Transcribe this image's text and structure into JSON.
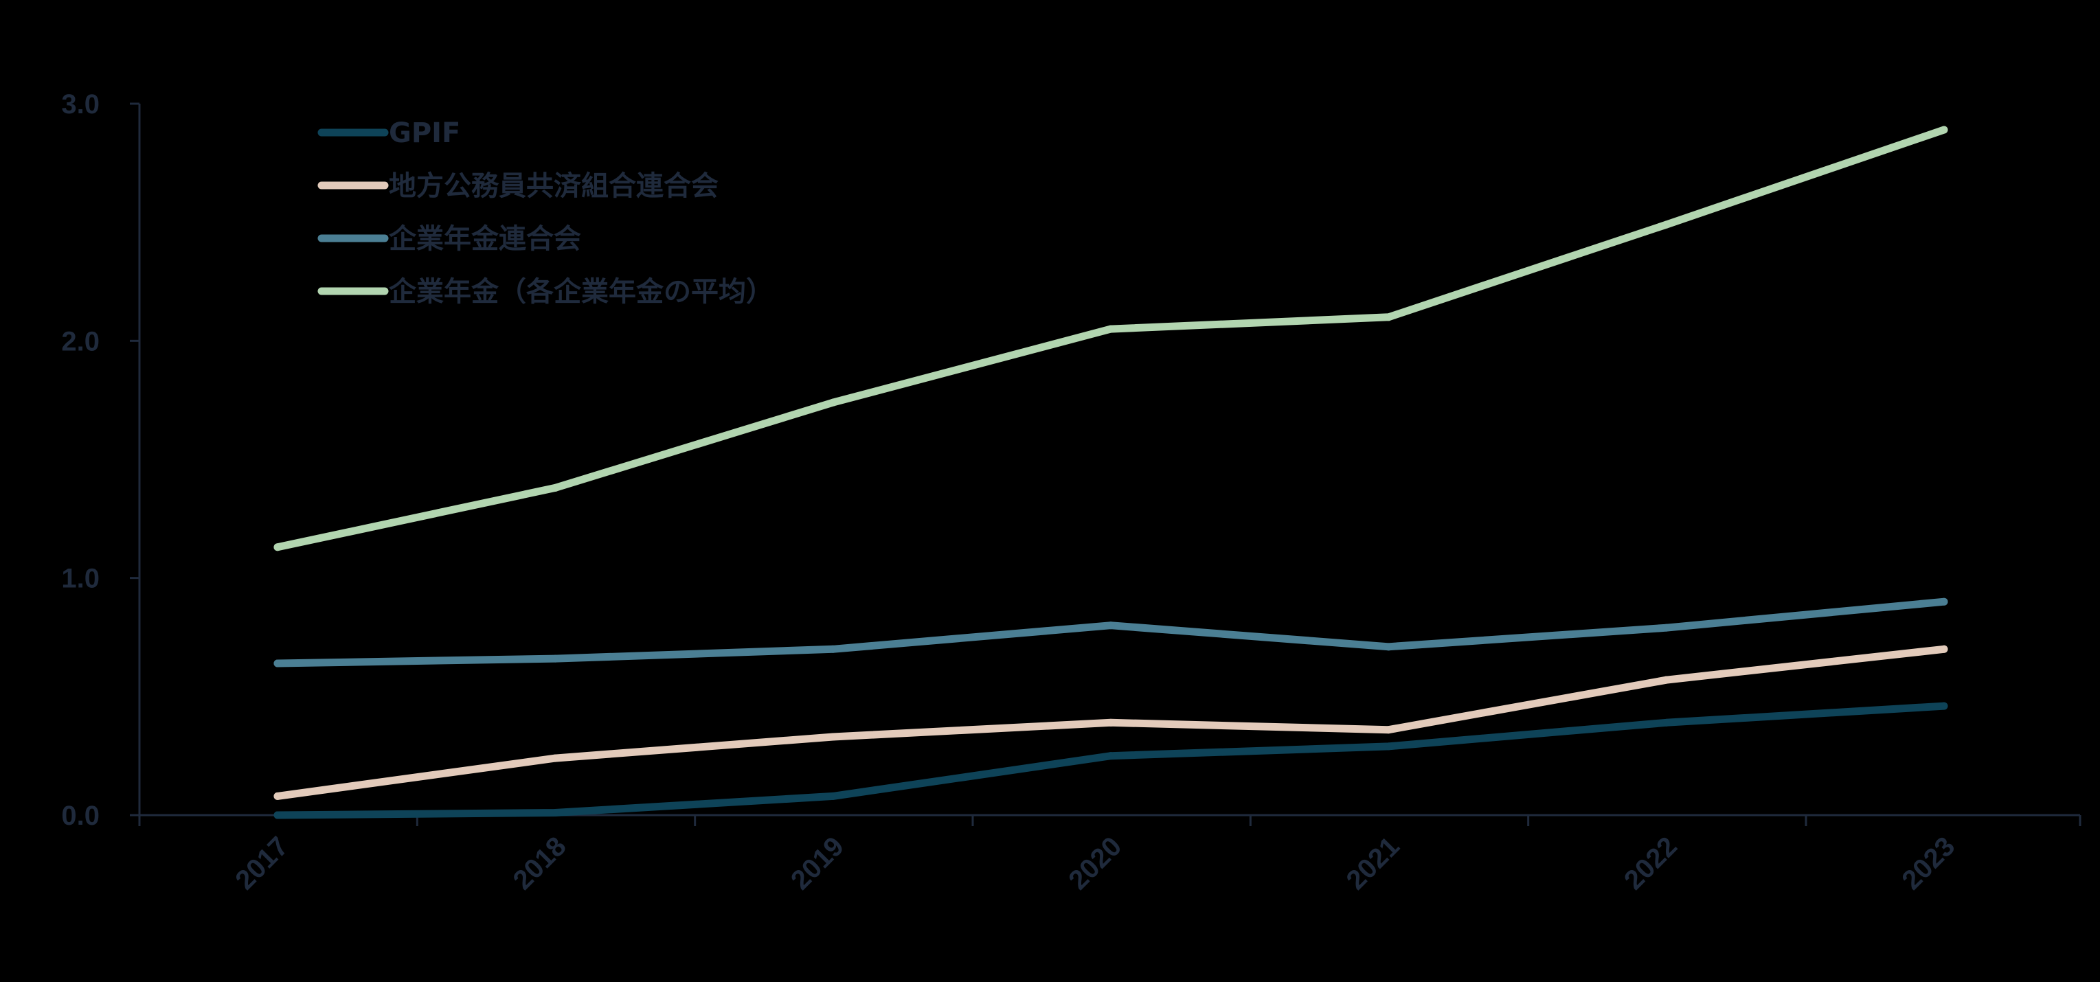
{
  "chart_data": {
    "type": "line",
    "title": "",
    "xlabel": "",
    "ylabel": "",
    "categories": [
      "2017",
      "2018",
      "2019",
      "2020",
      "2021",
      "2022",
      "2023"
    ],
    "ylim": [
      0,
      3.0
    ],
    "yticks": [
      "0.0",
      "1.0",
      "2.0",
      "3.0"
    ],
    "grid": false,
    "legend_position": "top-left",
    "series": [
      {
        "name": "GPIF",
        "color": "#0e4358",
        "values": [
          0.0,
          0.01,
          0.08,
          0.25,
          0.29,
          0.39,
          0.46
        ]
      },
      {
        "name": "地方公務員共済組合連合会",
        "color": "#e3cbbb",
        "values": [
          0.08,
          0.24,
          0.33,
          0.39,
          0.36,
          0.57,
          0.7
        ]
      },
      {
        "name": "企業年金連合会",
        "color": "#4b7f94",
        "values": [
          0.64,
          0.66,
          0.7,
          0.8,
          0.71,
          0.79,
          0.9
        ]
      },
      {
        "name": "企業年金（各企業年金の平均）",
        "color": "#b2d5b0",
        "values": [
          1.13,
          1.38,
          1.74,
          2.05,
          2.1,
          2.49,
          2.89
        ]
      }
    ],
    "axis_color": "#1f2a3c"
  }
}
